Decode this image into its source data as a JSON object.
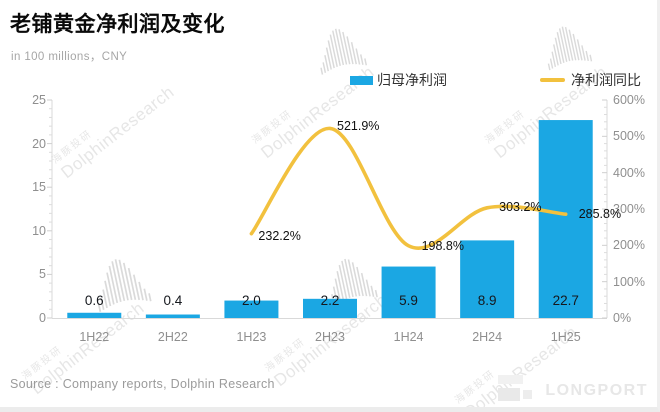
{
  "header": {
    "title": "老铺黄金净利润及变化",
    "subtitle": "in 100 millions，CNY"
  },
  "legend": [
    {
      "label": "归母净利润",
      "type": "bar",
      "color": "#1BA7E3"
    },
    {
      "label": "净利润同比",
      "type": "line",
      "color": "#F2C13E"
    }
  ],
  "chart_data": {
    "type": "bar+line combo",
    "categories": [
      "1H22",
      "2H22",
      "1H23",
      "2H23",
      "1H24",
      "2H24",
      "1H25"
    ],
    "series": [
      {
        "name": "归母净利润",
        "type": "bar",
        "axis": "left",
        "color": "#1BA7E3",
        "values": [
          0.6,
          0.4,
          2.0,
          2.2,
          5.9,
          8.9,
          22.7
        ],
        "labels": [
          "0.6",
          "0.4",
          "2.0",
          "2.2",
          "5.9",
          "8.9",
          "22.7"
        ]
      },
      {
        "name": "净利润同比",
        "type": "line",
        "axis": "right",
        "color": "#F2C13E",
        "values": [
          null,
          null,
          232.2,
          521.9,
          198.8,
          303.2,
          285.8
        ],
        "labels": [
          null,
          null,
          "232.2%",
          "521.9%",
          "198.8%",
          "303.2%",
          "285.8%"
        ]
      }
    ],
    "left_axis": {
      "min": 0,
      "max": 25,
      "major_step": 5,
      "minor_step": 1,
      "ticks": [
        "0",
        "5",
        "10",
        "15",
        "20",
        "25"
      ]
    },
    "right_axis": {
      "min": 0,
      "max": 600,
      "major_step": 100,
      "minor_step": 20,
      "ticks": [
        "0%",
        "100%",
        "200%",
        "300%",
        "400%",
        "500%",
        "600%"
      ]
    },
    "grid": false,
    "legend_position": "top-center",
    "line_smooth": true
  },
  "watermark": {
    "cn": "海豚投研",
    "en": "DolphinResearch"
  },
  "footer": {
    "source": "Source : Company reports, Dolphin Research",
    "brand": "LONGPORT"
  }
}
